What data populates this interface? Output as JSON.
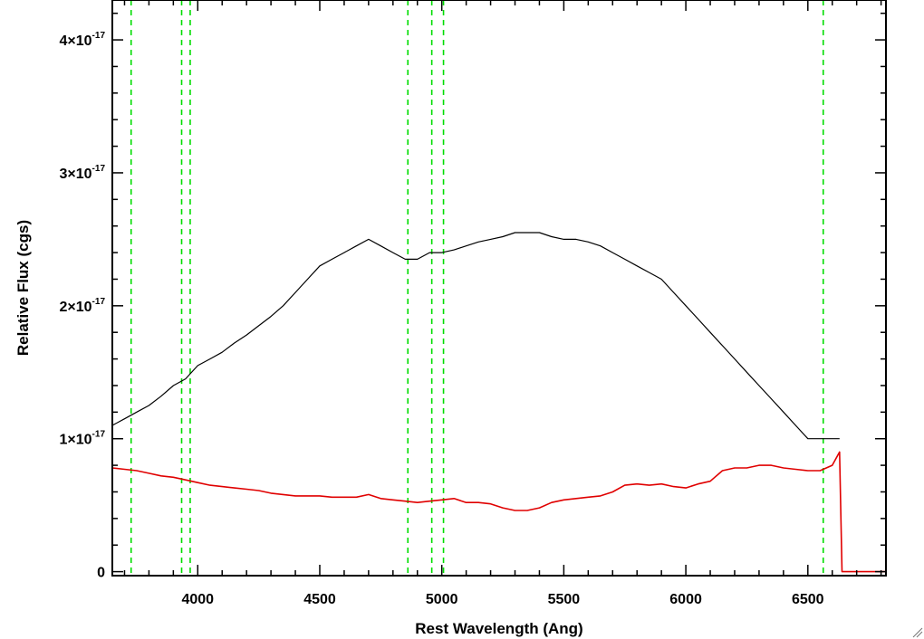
{
  "chart_data": {
    "type": "line",
    "title": "",
    "xlabel": "Rest Wavelength (Ang)",
    "ylabel": "Relative Flux (cgs)",
    "xlim": [
      3650,
      6820
    ],
    "ylim": [
      -3e-19,
      4.3e-17
    ],
    "x_ticks": [
      4000,
      4500,
      5000,
      5500,
      6000,
      6500
    ],
    "x_tick_labels": [
      "4000",
      "4500",
      "5000",
      "5500",
      "6000",
      "6500"
    ],
    "y_ticks": [
      0,
      1e-17,
      2e-17,
      3e-17,
      4e-17
    ],
    "y_tick_labels": [
      {
        "mantissa": "0",
        "exponent": ""
      },
      {
        "mantissa": "1×10",
        "exponent": "-17"
      },
      {
        "mantissa": "2×10",
        "exponent": "-17"
      },
      {
        "mantissa": "3×10",
        "exponent": "-17"
      },
      {
        "mantissa": "4×10",
        "exponent": "-17"
      }
    ],
    "grid": false,
    "colors": {
      "observed": "#000000",
      "model": "#e00000",
      "lines": "#00dd00",
      "axes": "#000000"
    },
    "series": [
      {
        "color": "#000000",
        "x": [
          3650,
          3700,
          3750,
          3800,
          3850,
          3900,
          3950,
          4000,
          4050,
          4100,
          4150,
          4200,
          4250,
          4300,
          4350,
          4400,
          4450,
          4500,
          4550,
          4600,
          4650,
          4700,
          4750,
          4800,
          4850,
          4900,
          4950,
          5000,
          5050,
          5100,
          5150,
          5200,
          5250,
          5300,
          5350,
          5400,
          5450,
          5500,
          5550,
          5600,
          5650,
          5700,
          5750,
          5800,
          5850,
          5900,
          5950,
          6000,
          6050,
          6100,
          6150,
          6200,
          6250,
          6300,
          6350,
          6400,
          6450,
          6500,
          6550,
          6600,
          6630
        ],
        "y": [
          1.1e-17,
          1.15e-17,
          1.2e-17,
          1.25e-17,
          1.32e-17,
          1.4e-17,
          1.45e-17,
          1.55e-17,
          1.6e-17,
          1.65e-17,
          1.72e-17,
          1.78e-17,
          1.85e-17,
          1.92e-17,
          2e-17,
          2.1e-17,
          2.2e-17,
          2.3e-17,
          2.35e-17,
          2.4e-17,
          2.45e-17,
          2.5e-17,
          2.45e-17,
          2.4e-17,
          2.35e-17,
          2.35e-17,
          2.4e-17,
          2.4e-17,
          2.42e-17,
          2.45e-17,
          2.48e-17,
          2.5e-17,
          2.52e-17,
          2.55e-17,
          2.55e-17,
          2.55e-17,
          2.52e-17,
          2.5e-17,
          2.5e-17,
          2.48e-17,
          2.45e-17,
          2.4e-17,
          2.35e-17,
          2.3e-17,
          2.25e-17,
          2.2e-17,
          2.1e-17,
          2e-17,
          1.9e-17,
          1.8e-17,
          1.7e-17,
          1.6e-17,
          1.5e-17,
          1.4e-17,
          1.3e-17,
          1.2e-17,
          1.1e-17,
          1e-17,
          1e-17,
          1e-17,
          1e-17
        ]
      },
      {
        "color": "#e00000",
        "x": [
          3650,
          3700,
          3750,
          3800,
          3850,
          3900,
          3950,
          4000,
          4050,
          4100,
          4150,
          4200,
          4250,
          4300,
          4350,
          4400,
          4450,
          4500,
          4550,
          4600,
          4650,
          4700,
          4750,
          4800,
          4850,
          4900,
          4950,
          5000,
          5050,
          5100,
          5150,
          5200,
          5250,
          5300,
          5350,
          5400,
          5450,
          5500,
          5550,
          5600,
          5650,
          5700,
          5750,
          5800,
          5850,
          5900,
          5950,
          6000,
          6050,
          6100,
          6150,
          6200,
          6250,
          6300,
          6350,
          6400,
          6450,
          6500,
          6550,
          6600,
          6630,
          6640,
          6820
        ],
        "y": [
          7.8e-18,
          7.7e-18,
          7.6e-18,
          7.4e-18,
          7.2e-18,
          7.1e-18,
          6.9e-18,
          6.7e-18,
          6.5e-18,
          6.4e-18,
          6.3e-18,
          6.2e-18,
          6.1e-18,
          5.9e-18,
          5.8e-18,
          5.7e-18,
          5.7e-18,
          5.7e-18,
          5.6e-18,
          5.6e-18,
          5.6e-18,
          5.8e-18,
          5.5e-18,
          5.4e-18,
          5.3e-18,
          5.2e-18,
          5.3e-18,
          5.4e-18,
          5.5e-18,
          5.2e-18,
          5.2e-18,
          5.1e-18,
          4.8e-18,
          4.6e-18,
          4.6e-18,
          4.8e-18,
          5.2e-18,
          5.4e-18,
          5.5e-18,
          5.6e-18,
          5.7e-18,
          6e-18,
          6.5e-18,
          6.6e-18,
          6.5e-18,
          6.6e-18,
          6.4e-18,
          6.3e-18,
          6.6e-18,
          6.8e-18,
          7.6e-18,
          7.8e-18,
          7.8e-18,
          8e-18,
          8e-18,
          7.8e-18,
          7.7e-18,
          7.6e-18,
          7.6e-18,
          8e-18,
          9e-18,
          0,
          0
        ]
      }
    ],
    "reference_lines_x": [
      3727,
      3934,
      3969,
      4861,
      4959,
      5007,
      6563
    ]
  }
}
